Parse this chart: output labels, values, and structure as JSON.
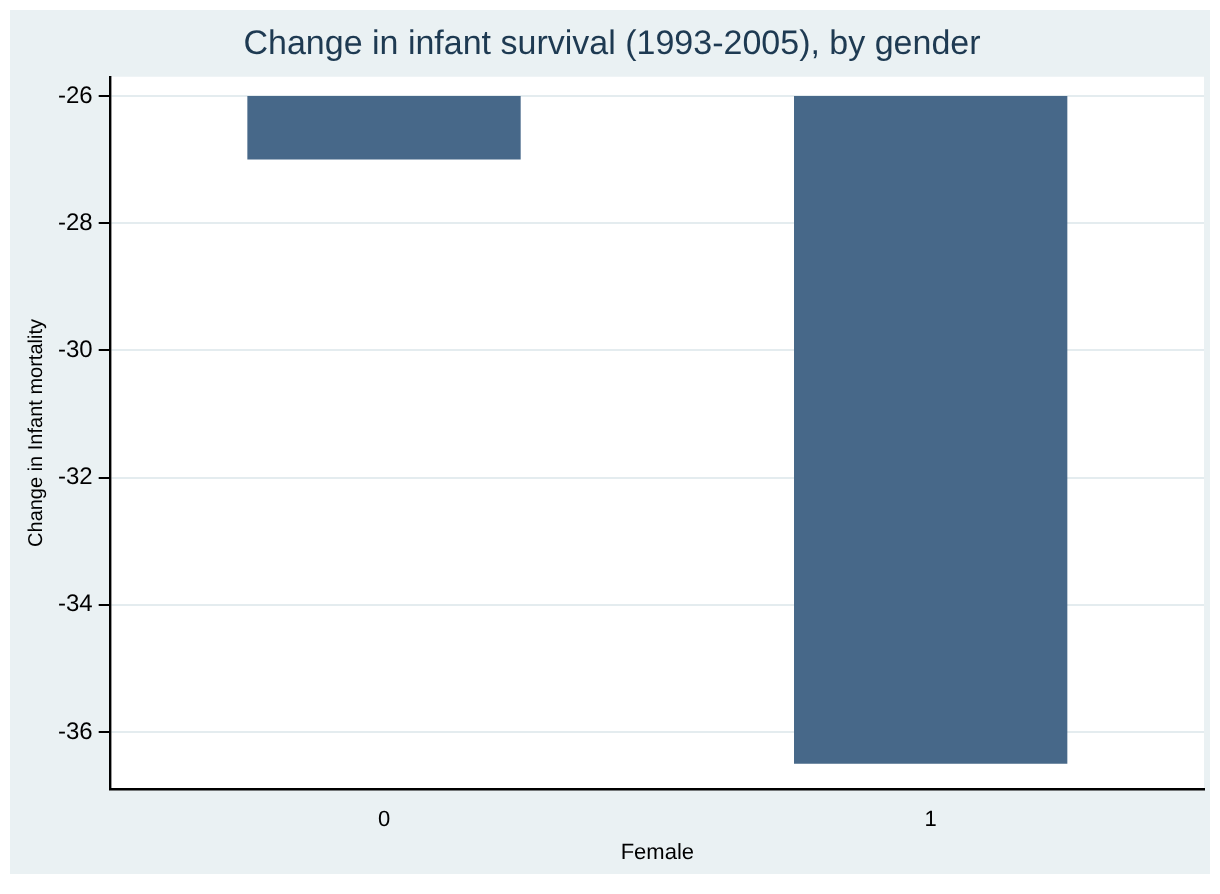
{
  "chart_data": {
    "type": "bar",
    "title": "Change in infant survival (1993-2005), by gender",
    "xlabel": "Female",
    "ylabel": "Change in Infant mortality",
    "categories": [
      "0",
      "1"
    ],
    "base": [
      -26,
      -26
    ],
    "values": [
      -1,
      -10.5
    ],
    "color": "#476889",
    "ylim": [
      -36.9,
      -25.7
    ],
    "yticks": [
      -26,
      -28,
      -30,
      -32,
      -34,
      -36
    ],
    "grid": "y"
  }
}
